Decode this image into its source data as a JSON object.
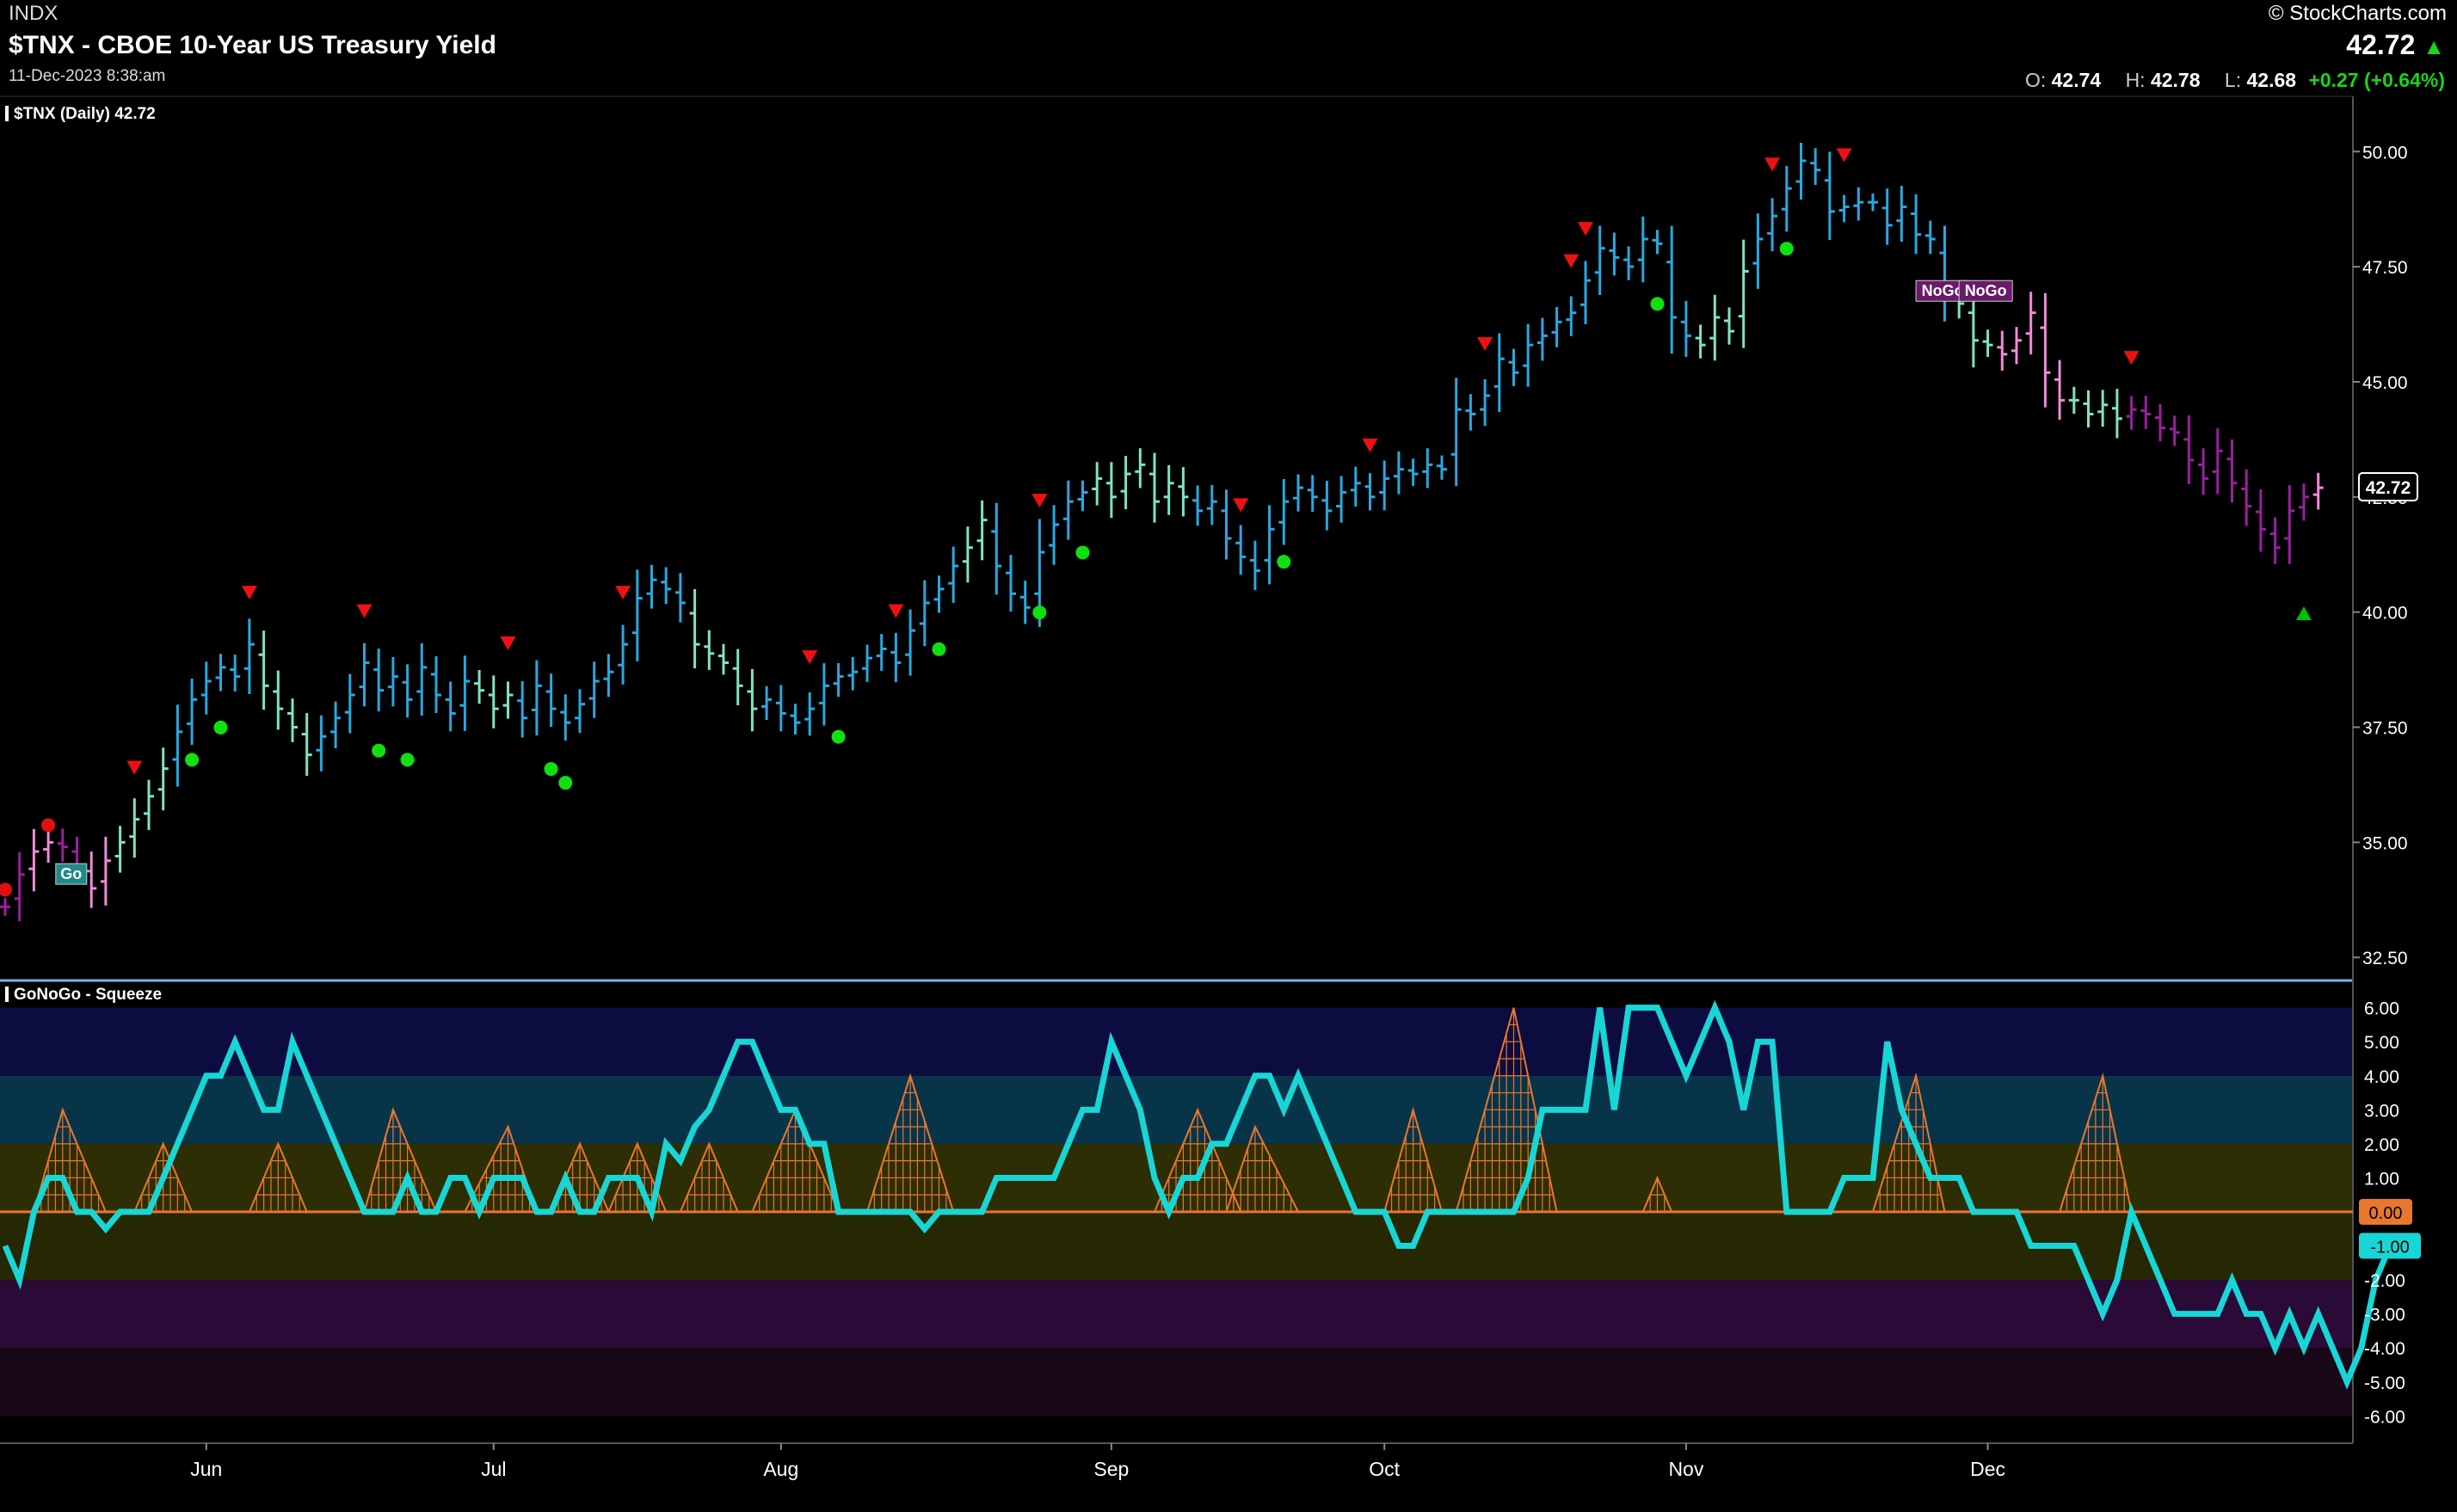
{
  "header": {
    "exchange": "INDX",
    "title": "$TNX - CBOE 10-Year US Treasury Yield",
    "date": "11-Dec-2023 8:38:am",
    "brand": "© StockCharts.com",
    "last": "42.72",
    "ohlc": {
      "o_label": "O:",
      "o": "42.74",
      "h_label": "H:",
      "h": "42.78",
      "l_label": "L:",
      "l": "42.68",
      "change": "+0.27 (+0.64%)"
    }
  },
  "colors": {
    "background": "#000000",
    "go_strong": "#29a8e0",
    "go_weak": "#7fe3c4",
    "nogo_weak": "#f08ad8",
    "nogo_strong": "#9b1fa0",
    "oscillator": "#19d6d6",
    "squeeze": "#e8772e",
    "up_arrow": "#00c000",
    "down_arrow": "#ee1111",
    "go_dot": "#10e010"
  },
  "chart_data": [
    {
      "type": "bar",
      "label": "$TNX (Daily) 42.72",
      "y_ticks": [
        32.5,
        35.0,
        37.5,
        40.0,
        42.5,
        45.0,
        47.5,
        50.0
      ],
      "y_tick_labels": [
        "32.50",
        "35.00",
        "37.50",
        "40.00",
        "42.50",
        "45.00",
        "47.50",
        "50.00"
      ],
      "ylim": [
        32,
        51.2
      ],
      "x_month_labels": [
        {
          "day": 14,
          "label": "Jun"
        },
        {
          "day": 34,
          "label": "Jul"
        },
        {
          "day": 54,
          "label": "Aug"
        },
        {
          "day": 77,
          "label": "Sep"
        },
        {
          "day": 96,
          "label": "Oct"
        },
        {
          "day": 117,
          "label": "Nov"
        },
        {
          "day": 138,
          "label": "Dec"
        }
      ],
      "last_value_label": "42.72",
      "close": [
        33.6,
        34.3,
        34.8,
        35.0,
        34.9,
        34.5,
        34.0,
        34.6,
        35.0,
        35.5,
        36.0,
        36.6,
        37.4,
        38.1,
        38.5,
        38.8,
        38.6,
        39.3,
        38.4,
        37.9,
        37.5,
        36.9,
        37.3,
        37.7,
        38.2,
        38.9,
        38.3,
        38.6,
        38.1,
        38.8,
        38.2,
        37.8,
        38.5,
        38.3,
        37.9,
        38.2,
        37.7,
        38.4,
        37.9,
        37.6,
        38.0,
        38.5,
        38.7,
        39.3,
        40.3,
        40.7,
        40.5,
        40.2,
        39.3,
        39.1,
        38.9,
        38.4,
        37.9,
        38.1,
        37.8,
        37.6,
        37.9,
        38.4,
        38.6,
        38.7,
        39.0,
        39.2,
        38.9,
        39.6,
        40.2,
        40.5,
        41.0,
        41.4,
        42.0,
        41.0,
        40.4,
        40.1,
        41.3,
        41.9,
        42.4,
        42.6,
        42.9,
        42.5,
        43.0,
        43.2,
        42.4,
        42.8,
        42.5,
        42.2,
        42.4,
        41.6,
        41.2,
        40.9,
        41.8,
        42.4,
        42.7,
        42.5,
        42.2,
        42.6,
        42.8,
        42.5,
        42.9,
        43.1,
        43.0,
        43.2,
        43.1,
        44.4,
        44.3,
        44.7,
        45.5,
        45.2,
        45.8,
        46.0,
        46.3,
        46.5,
        47.2,
        47.9,
        47.7,
        47.5,
        48.1,
        48.0,
        46.4,
        46.0,
        45.8,
        46.4,
        46.1,
        47.4,
        48.1,
        48.6,
        49.2,
        49.8,
        49.6,
        48.7,
        48.8,
        48.9,
        48.9,
        48.4,
        48.8,
        48.2,
        48.1,
        46.9,
        46.7,
        45.9,
        45.8,
        45.6,
        45.9,
        46.5,
        45.2,
        44.6,
        44.6,
        44.3,
        44.5,
        44.2,
        44.4,
        44.3,
        44.0,
        43.9,
        43.3,
        42.9,
        43.5,
        42.8,
        42.3,
        41.8,
        41.4,
        42.2,
        42.5,
        42.7
      ],
      "highs": [
        {
          "day": 108,
          "value": 48.9
        },
        {
          "day": 128,
          "value": 50.0
        },
        {
          "day": 138,
          "value": 47.4
        }
      ],
      "lows": [
        {
          "day": 0,
          "value": 33.6
        },
        {
          "day": 158,
          "value": 41.4
        }
      ],
      "go_label": "Go",
      "nogo_label": "NoGo"
    },
    {
      "type": "line",
      "label": "GoNoGo - Squeeze",
      "y_ticks": [
        -6,
        -5,
        -4,
        -3,
        -2,
        -1,
        0,
        1,
        2,
        3,
        4,
        5,
        6
      ],
      "y_tick_labels": [
        "-6.00",
        "-5.00",
        "-4.00",
        "-3.00",
        "-2.00",
        "",
        "",
        "1.00",
        "2.00",
        "3.00",
        "4.00",
        "5.00",
        "6.00"
      ],
      "ylim": [
        -6.8,
        6.8
      ],
      "zero_label": "0.00",
      "last_value_label": "-1.00",
      "oscillator": [
        -1.0,
        -2.0,
        0.0,
        1.0,
        1.0,
        0.0,
        0.0,
        -0.5,
        0.0,
        0.0,
        0.0,
        1.0,
        2.0,
        3.0,
        4.0,
        4.0,
        5.0,
        4.0,
        3.0,
        3.0,
        5.0,
        4.0,
        3.0,
        2.0,
        1.0,
        0.0,
        0.0,
        0.0,
        1.0,
        0.0,
        0.0,
        1.0,
        1.0,
        0.0,
        1.0,
        1.0,
        1.0,
        0.0,
        0.0,
        1.0,
        0.0,
        0.0,
        1.0,
        1.0,
        1.0,
        0.0,
        2.0,
        1.5,
        2.5,
        3.0,
        4.0,
        5.0,
        5.0,
        4.0,
        3.0,
        3.0,
        2.0,
        2.0,
        0.0,
        0.0,
        0.0,
        0.0,
        0.0,
        0.0,
        -0.5,
        0.0,
        0.0,
        0.0,
        0.0,
        1.0,
        1.0,
        1.0,
        1.0,
        1.0,
        2.0,
        3.0,
        3.0,
        5.0,
        4.0,
        3.0,
        1.0,
        0.0,
        1.0,
        1.0,
        2.0,
        2.0,
        3.0,
        4.0,
        4.0,
        3.0,
        4.0,
        3.0,
        2.0,
        1.0,
        0.0,
        0.0,
        0.0,
        -1.0,
        -1.0,
        0.0,
        0.0,
        0.0,
        0.0,
        0.0,
        0.0,
        0.0,
        1.0,
        3.0,
        3.0,
        3.0,
        3.0,
        6.0,
        3.0,
        6.0,
        6.0,
        6.0,
        5.0,
        4.0,
        5.0,
        6.0,
        5.0,
        3.0,
        5.0,
        5.0,
        0.0,
        0.0,
        0.0,
        0.0,
        1.0,
        1.0,
        1.0,
        5.0,
        3.0,
        2.0,
        1.0,
        1.0,
        1.0,
        0.0,
        0.0,
        0.0,
        0.0,
        -1.0,
        -1.0,
        -1.0,
        -1.0,
        -2.0,
        -3.0,
        -2.0,
        0.0,
        -1.0,
        -2.0,
        -3.0,
        -3.0,
        -3.0,
        -3.0,
        -2.0,
        -3.0,
        -3.0,
        -4.0,
        -3.0,
        -4.0,
        -3.0,
        -4.0,
        -5.0,
        -4.0,
        -2.0,
        -1.0
      ],
      "squeeze_spikes": [
        {
          "start": 2,
          "peak": 4,
          "end": 7,
          "height": 3.0
        },
        {
          "start": 9,
          "peak": 11,
          "end": 13,
          "height": 2.0
        },
        {
          "start": 17,
          "peak": 19,
          "end": 21,
          "height": 2.0
        },
        {
          "start": 25,
          "peak": 27,
          "end": 30,
          "height": 3.0
        },
        {
          "start": 32,
          "peak": 35,
          "end": 37,
          "height": 2.5
        },
        {
          "start": 38,
          "peak": 40,
          "end": 42,
          "height": 2.0
        },
        {
          "start": 42,
          "peak": 44,
          "end": 46,
          "height": 2.0
        },
        {
          "start": 47,
          "peak": 49,
          "end": 51,
          "height": 2.0
        },
        {
          "start": 52,
          "peak": 55,
          "end": 58,
          "height": 3.0
        },
        {
          "start": 60,
          "peak": 63,
          "end": 66,
          "height": 4.0
        },
        {
          "start": 80,
          "peak": 83,
          "end": 86,
          "height": 3.0
        },
        {
          "start": 85,
          "peak": 87,
          "end": 90,
          "height": 2.5
        },
        {
          "start": 96,
          "peak": 98,
          "end": 100,
          "height": 3.0
        },
        {
          "start": 101,
          "peak": 105,
          "end": 108,
          "height": 6.0
        },
        {
          "start": 114,
          "peak": 115,
          "end": 116,
          "height": 1.0
        },
        {
          "start": 130,
          "peak": 133,
          "end": 135,
          "height": 4.0
        },
        {
          "start": 143,
          "peak": 146,
          "end": 148,
          "height": 4.0
        }
      ]
    }
  ]
}
